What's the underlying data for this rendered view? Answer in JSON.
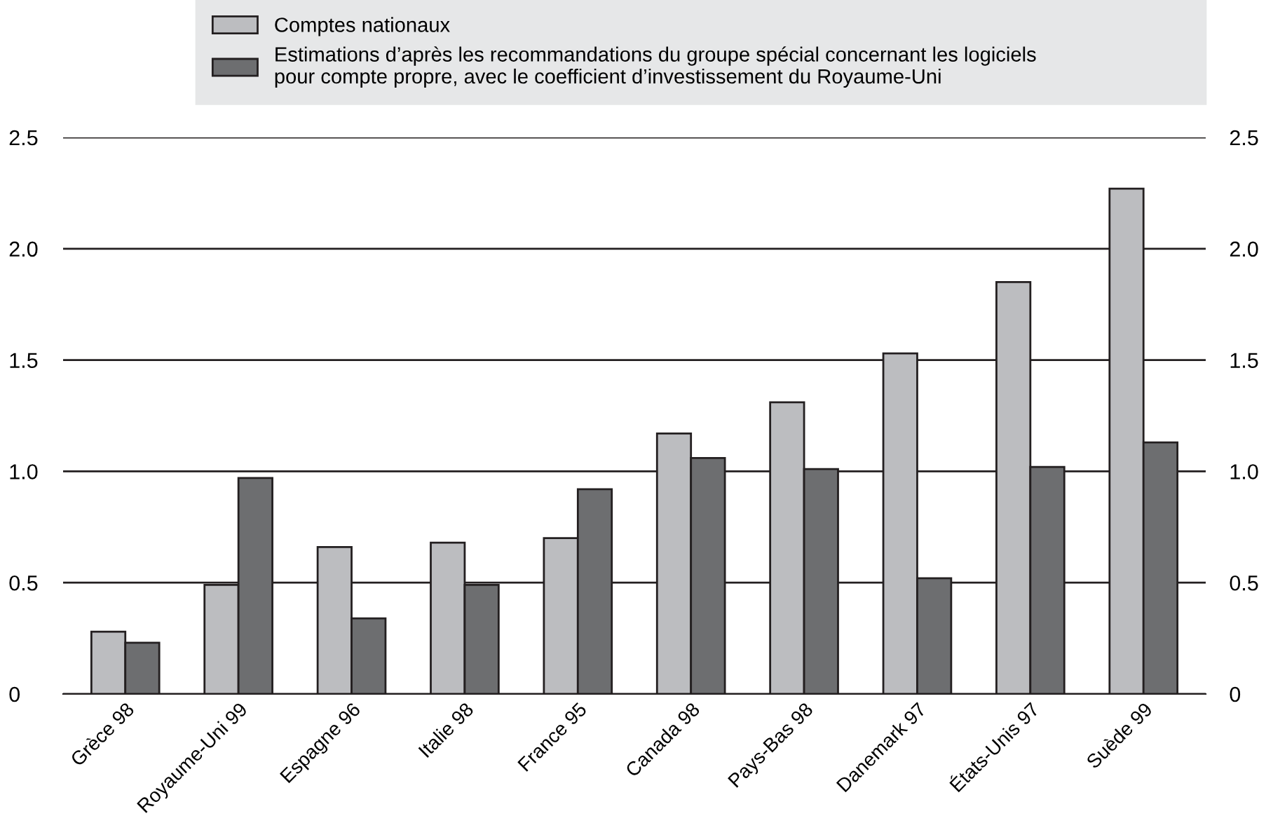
{
  "chart_data": {
    "type": "bar",
    "categories": [
      "Grèce 98",
      "Royaume-Uni 99",
      "Espagne 96",
      "Italie 98",
      "France 95",
      "Canada 98",
      "Pays-Bas 98",
      "Danemark 97",
      "États-Unis 97",
      "Suède 99"
    ],
    "series": [
      {
        "name": "Comptes nationaux",
        "color": "#bcbdc0",
        "values": [
          0.28,
          0.49,
          0.66,
          0.68,
          0.7,
          1.17,
          1.31,
          1.53,
          1.85,
          2.27
        ]
      },
      {
        "name": "Estimations d’après les recommandations du groupe spécial concernant les logiciels\npour compte propre, avec le coefficient d’investissement du Royaume-Uni",
        "color": "#6d6e70",
        "values": [
          0.23,
          0.97,
          0.34,
          0.49,
          0.92,
          1.06,
          1.01,
          0.52,
          1.02,
          1.13
        ]
      }
    ],
    "ylim": [
      0,
      2.5
    ],
    "yticks": [
      {
        "value": 0,
        "label": "0"
      },
      {
        "value": 0.5,
        "label": "0.5"
      },
      {
        "value": 1,
        "label": "1.0"
      },
      {
        "value": 1.5,
        "label": "1.5"
      },
      {
        "value": 2,
        "label": "2.0"
      },
      {
        "value": 2.5,
        "label": "2.5"
      }
    ],
    "y2lim": [
      0,
      2.5
    ],
    "y2ticks": [
      {
        "value": 0,
        "label": "0"
      },
      {
        "value": 0.5,
        "label": "0.5"
      },
      {
        "value": 1,
        "label": "1.0"
      },
      {
        "value": 1.5,
        "label": "1.5"
      },
      {
        "value": 2,
        "label": "2.0"
      },
      {
        "value": 2.5,
        "label": "2.5"
      }
    ],
    "grid": "y",
    "legend": "top"
  }
}
